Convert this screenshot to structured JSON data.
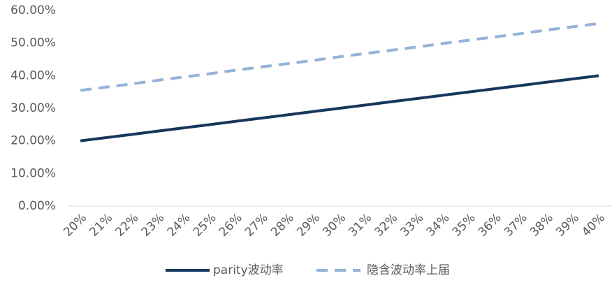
{
  "chart_data": {
    "type": "line",
    "categories": [
      "20%",
      "21%",
      "22%",
      "23%",
      "24%",
      "25%",
      "26%",
      "27%",
      "28%",
      "29%",
      "30%",
      "31%",
      "32%",
      "33%",
      "34%",
      "35%",
      "36%",
      "37%",
      "38%",
      "39%",
      "40%"
    ],
    "series": [
      {
        "name": "parity波动率",
        "color": "#17365d",
        "dash": false,
        "values": [
          20,
          21,
          22,
          23,
          24,
          25,
          26,
          27,
          28,
          29,
          30,
          31,
          32,
          33,
          34,
          35,
          36,
          37,
          38,
          39,
          40
        ]
      },
      {
        "name": "隐含波动率上届",
        "color": "#95b3d7",
        "dash": true,
        "values": [
          35.5,
          36.5,
          37.5,
          38.6,
          39.6,
          40.6,
          41.7,
          42.7,
          43.7,
          44.7,
          45.8,
          46.8,
          47.8,
          48.8,
          49.9,
          50.9,
          51.9,
          52.9,
          54.0,
          55.0,
          56.0
        ]
      }
    ],
    "ylim": [
      0,
      60
    ],
    "yticks": [
      {
        "value": 0,
        "label": "0.00%"
      },
      {
        "value": 10,
        "label": "10.00%"
      },
      {
        "value": 20,
        "label": "20.00%"
      },
      {
        "value": 30,
        "label": "30.00%"
      },
      {
        "value": 40,
        "label": "40.00%"
      },
      {
        "value": 50,
        "label": "50.00%"
      },
      {
        "value": 60,
        "label": "60.00%"
      }
    ],
    "legend": "bottom"
  }
}
